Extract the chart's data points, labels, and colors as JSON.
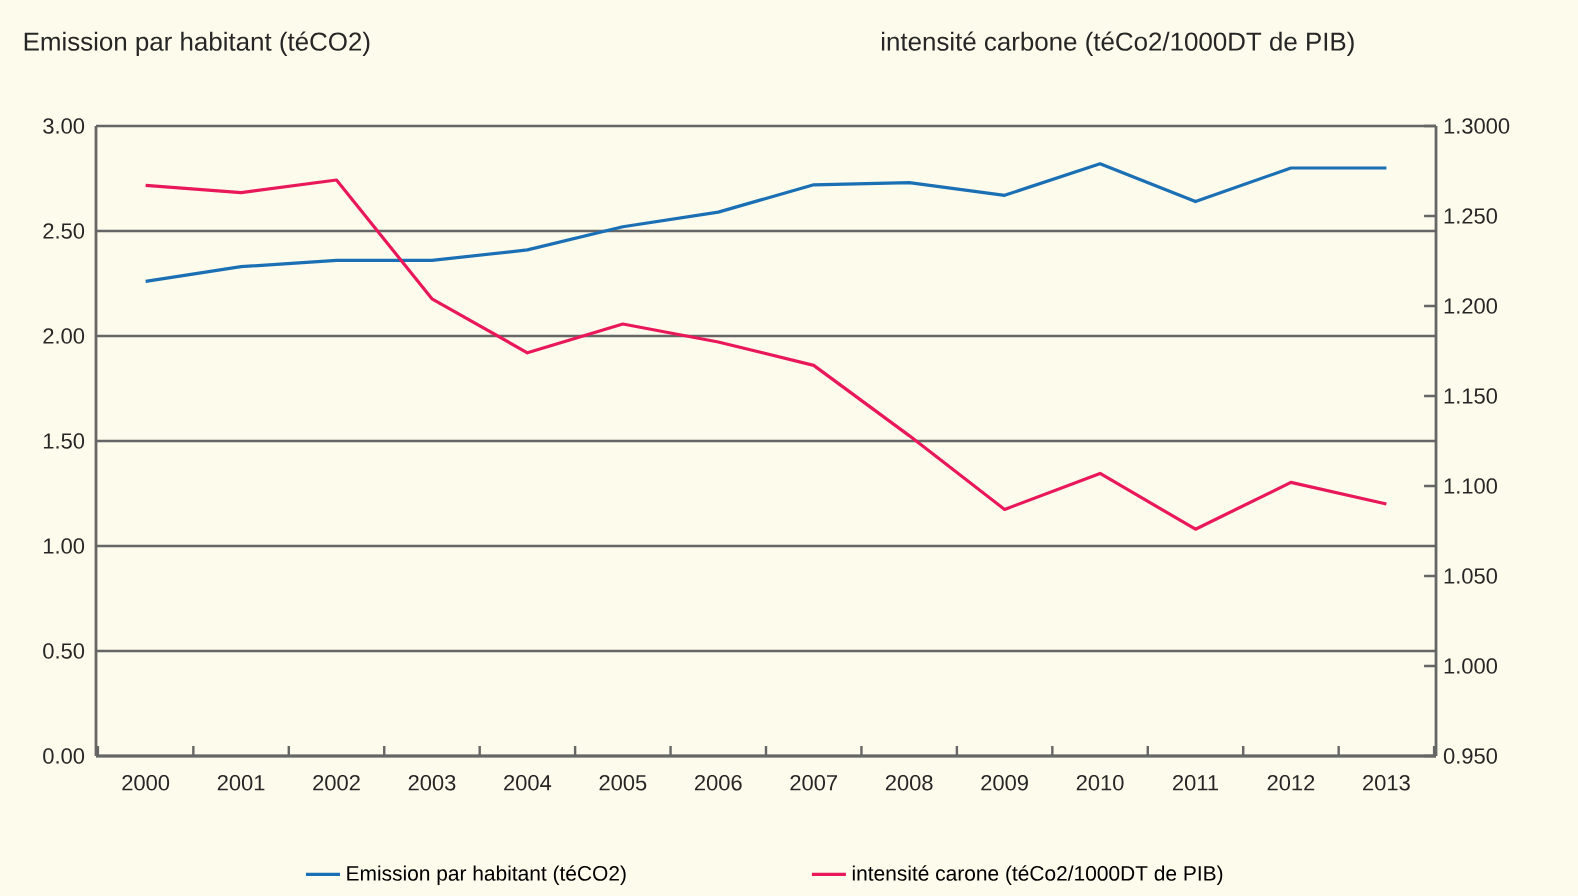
{
  "chart_data": {
    "type": "line",
    "xlabel": null,
    "ylabel": "Emission par habitant (téCO2)",
    "y2label": "intensité carbone (téCo2/1000DT de PIB)",
    "categories": [
      "2000",
      "2001",
      "2002",
      "2003",
      "2004",
      "2005",
      "2006",
      "2007",
      "2008",
      "2009",
      "2010",
      "2011",
      "2012",
      "2013"
    ],
    "series": [
      {
        "name": "Emission par habitant (téCO2)",
        "color": "#1a6fb5",
        "values": [
          2.26,
          2.33,
          2.36,
          2.36,
          2.41,
          2.52,
          2.59,
          2.72,
          2.73,
          2.67,
          2.82,
          2.64,
          2.8,
          2.8
        ]
      },
      {
        "name": "intensité carone (téCo2/1000DT de PIB)",
        "color": "#e8185a",
        "axis": "y2",
        "values": [
          1.267,
          1.263,
          1.27,
          1.204,
          1.174,
          1.19,
          1.18,
          1.167,
          1.128,
          1.087,
          1.107,
          1.076,
          1.102,
          1.09
        ]
      }
    ],
    "ylim": [
      0,
      3
    ],
    "yticks": [
      {
        "value": 0,
        "label": "0.00"
      },
      {
        "value": 0.5,
        "label": "0.50"
      },
      {
        "value": 1,
        "label": "1.00"
      },
      {
        "value": 1.5,
        "label": "1.50"
      },
      {
        "value": 2,
        "label": "2.00"
      },
      {
        "value": 2.5,
        "label": "2.50"
      },
      {
        "value": 3,
        "label": "3.00"
      }
    ],
    "y2lim": [
      0.95,
      1.3
    ],
    "y2ticks": [
      {
        "value": 0.95,
        "label": "0.950"
      },
      {
        "value": 1.0,
        "label": "1.000"
      },
      {
        "value": 1.05,
        "label": "1.050"
      },
      {
        "value": 1.1,
        "label": "1.100"
      },
      {
        "value": 1.15,
        "label": "1.150"
      },
      {
        "value": 1.2,
        "label": "1.200"
      },
      {
        "value": 1.25,
        "label": "1.250"
      },
      {
        "value": 1.3,
        "label": "1.3000"
      }
    ],
    "grid": "y",
    "legend": "bottom",
    "marker": "none",
    "line_style": "solid"
  }
}
